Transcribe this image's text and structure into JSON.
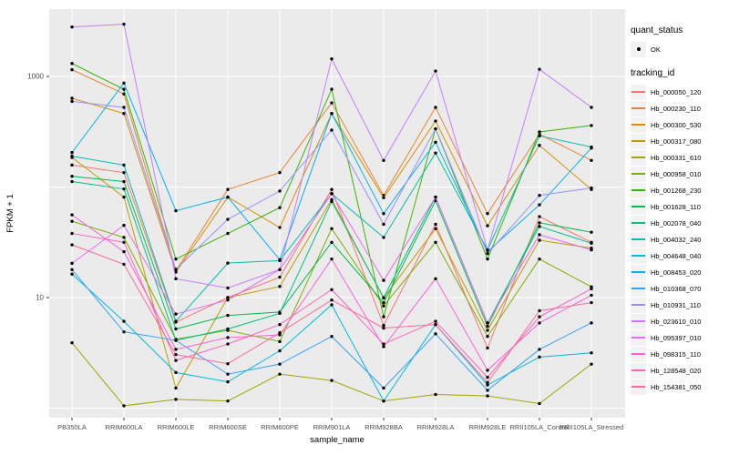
{
  "figure": {
    "y_axis": {
      "title": "FPKM + 1",
      "tick_labels": [
        "1000",
        "10"
      ]
    },
    "x_axis": {
      "title": "sample_name"
    },
    "legend": {
      "quant_status_title": "quant_status",
      "quant_status_items": [
        {
          "label": "OK",
          "symbol": "point"
        }
      ],
      "tracking_id_title": "tracking_id"
    },
    "colors": {
      "panel_bg": "#EBEBEB",
      "grid": "#FFFFFF",
      "key_bg": "#F2F2F2",
      "tick_text": "#4D4D4D",
      "point": "#000000"
    }
  },
  "chart_data": {
    "type": "line",
    "title": "",
    "xlabel": "sample_name",
    "ylabel": "FPKM + 1",
    "y_scale": "log10",
    "ylim": [
      0.85,
      4500
    ],
    "y_major_breaks": [
      10,
      1000
    ],
    "y_minor_breaks": [
      1,
      100
    ],
    "grid": true,
    "legend_position": "right",
    "x_categories": [
      "PB350LA",
      "RRIM600LA",
      "RRIM600LE",
      "RRIM600SE",
      "RRIM600PE",
      "RRIM901LA",
      "RRIM928BA",
      "RRIM928LA",
      "RRIM928LE",
      "RRII105LA_Control",
      "RRII105LA_Stressed"
    ],
    "quant_status": "OK",
    "series": [
      {
        "name": "Hb_000050_120",
        "color": "#F8766D",
        "values": [
          158,
          135,
          6.0,
          10,
          15.3,
          95,
          5.6,
          46,
          3.5,
          54,
          31.6
        ]
      },
      {
        "name": "Hb_000230_110",
        "color": "#EA8331",
        "values": [
          1150,
          695,
          17.5,
          95,
          135,
          577,
          84,
          525,
          57.5,
          300,
          174
        ]
      },
      {
        "name": "Hb_000300_530",
        "color": "#D89000",
        "values": [
          635,
          462,
          17,
          81,
          43,
          462,
          80,
          395,
          44.6,
          238,
          95
        ]
      },
      {
        "name": "Hb_000317_080",
        "color": "#C09B00",
        "values": [
          185,
          81,
          1.52,
          10,
          12.6,
          77,
          9.9,
          42,
          5.05,
          33,
          28
        ]
      },
      {
        "name": "Hb_000331_610",
        "color": "#A3A500",
        "values": [
          3.9,
          1.05,
          1.2,
          1.16,
          2.03,
          1.78,
          1.16,
          1.33,
          1.29,
          1.1,
          2.5
        ]
      },
      {
        "name": "Hb_000958_010",
        "color": "#7CAE00",
        "values": [
          49,
          35,
          4.2,
          5.05,
          4.0,
          42,
          8.4,
          31.6,
          4.45,
          22.3,
          12.5
        ]
      },
      {
        "name": "Hb_001268_230",
        "color": "#39B600",
        "values": [
          1310,
          765,
          22.3,
          38,
          65,
          766,
          6.7,
          336,
          22.3,
          315,
          360
        ]
      },
      {
        "name": "Hb_001628_110",
        "color": "#00BB4E",
        "values": [
          125,
          112,
          5.2,
          6.9,
          7.4,
          31.6,
          9.0,
          75,
          5.5,
          47.5,
          39
        ]
      },
      {
        "name": "Hb_002078_040",
        "color": "#00C087",
        "values": [
          112,
          96,
          4.1,
          5.2,
          7.2,
          74,
          10,
          81,
          5.9,
          44,
          31
        ]
      },
      {
        "name": "Hb_004032_240",
        "color": "#00C0AF",
        "values": [
          190,
          158,
          6.1,
          20.5,
          21.6,
          87,
          35,
          203,
          27,
          290,
          230
        ]
      },
      {
        "name": "Hb_004648_040",
        "color": "#00BCD8",
        "values": [
          16.3,
          6.1,
          2.1,
          1.73,
          3.3,
          8.6,
          1.16,
          5.7,
          1.62,
          2.9,
          3.16
        ]
      },
      {
        "name": "Hb_008453_020",
        "color": "#00B0F6",
        "values": [
          205,
          870,
          61,
          81,
          22,
          462,
          57.5,
          254,
          26,
          69,
          225
        ]
      },
      {
        "name": "Hb_010368_070",
        "color": "#35A2FF",
        "values": [
          17.9,
          4.9,
          4.1,
          2.03,
          2.5,
          4.45,
          1.52,
          4.7,
          1.45,
          3.4,
          5.9
        ]
      },
      {
        "name": "Hb_010931_110",
        "color": "#9590FF",
        "values": [
          595,
          525,
          18,
          51,
          92,
          327,
          46,
          336,
          25,
          84,
          98
        ]
      },
      {
        "name": "Hb_023610_010",
        "color": "#C77CFF",
        "values": [
          2800,
          2970,
          14.8,
          12.2,
          17.9,
          1440,
          174,
          1120,
          27,
          1160,
          525
        ]
      },
      {
        "name": "Hb_095397_010",
        "color": "#E76BF3",
        "values": [
          20.4,
          45,
          7.1,
          9.5,
          17.9,
          87,
          14.3,
          81,
          5.9,
          37,
          27
        ]
      },
      {
        "name": "Hb_098315_110",
        "color": "#FA62DB",
        "values": [
          56,
          26,
          3.4,
          4.35,
          4.6,
          22.3,
          3.6,
          14.8,
          2.2,
          5.9,
          10.5
        ]
      },
      {
        "name": "Hb_128548_020",
        "color": "#FF62BC",
        "values": [
          38,
          31.6,
          2.7,
          3.8,
          5.7,
          11.8,
          3.8,
          6.1,
          1.9,
          6.7,
          12
        ]
      },
      {
        "name": "Hb_154381_050",
        "color": "#FF6A98",
        "values": [
          30,
          20,
          3.05,
          2.52,
          4.8,
          9.5,
          5.3,
          5.7,
          1.7,
          7.6,
          9
        ]
      }
    ]
  }
}
